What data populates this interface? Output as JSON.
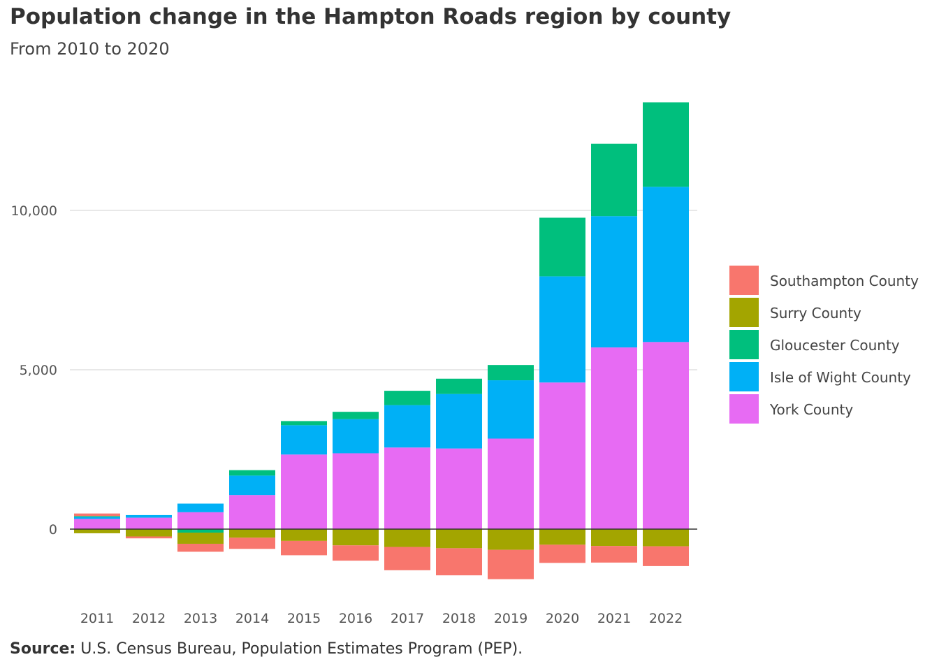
{
  "title": "Population change in the Hampton Roads region by county",
  "subtitle": "From 2010 to 2020",
  "source": {
    "label": "Source:",
    "text": "U.S. Census Bureau, Population Estimates Program (PEP)."
  },
  "chart_data": {
    "type": "bar",
    "stacked": true,
    "title": "Population change in the Hampton Roads region by county",
    "subtitle": "From 2010 to 2020",
    "xlabel": "",
    "ylabel": "",
    "ylim": [
      -2300,
      13600
    ],
    "yticks": [
      0,
      5000,
      10000
    ],
    "ytick_labels": [
      "0",
      "5,000",
      "10,000"
    ],
    "grid": true,
    "legend": "right",
    "categories": [
      "2011",
      "2012",
      "2013",
      "2014",
      "2015",
      "2016",
      "2017",
      "2018",
      "2019",
      "2020",
      "2021",
      "2022"
    ],
    "series": [
      {
        "name": "Southampton County",
        "color": "#F8766D",
        "values": [
          80,
          -60,
          -250,
          -350,
          -450,
          -480,
          -730,
          -850,
          -920,
          -570,
          -520,
          -620
        ]
      },
      {
        "name": "Surry County",
        "color": "#A3A500",
        "values": [
          -130,
          -230,
          -350,
          -270,
          -370,
          -510,
          -560,
          -600,
          -650,
          -490,
          -530,
          -540
        ]
      },
      {
        "name": "Gloucester County",
        "color": "#00BF7D",
        "values": [
          30,
          0,
          -110,
          170,
          130,
          230,
          450,
          480,
          480,
          1840,
          2270,
          2650
        ]
      },
      {
        "name": "Isle of Wight County",
        "color": "#00B0F6",
        "values": [
          60,
          80,
          270,
          610,
          920,
          1070,
          1330,
          1710,
          1830,
          3330,
          4120,
          4870
        ]
      },
      {
        "name": "York County",
        "color": "#E76BF3",
        "values": [
          320,
          360,
          530,
          1070,
          2340,
          2380,
          2560,
          2530,
          2840,
          4600,
          5700,
          5870
        ]
      }
    ]
  }
}
